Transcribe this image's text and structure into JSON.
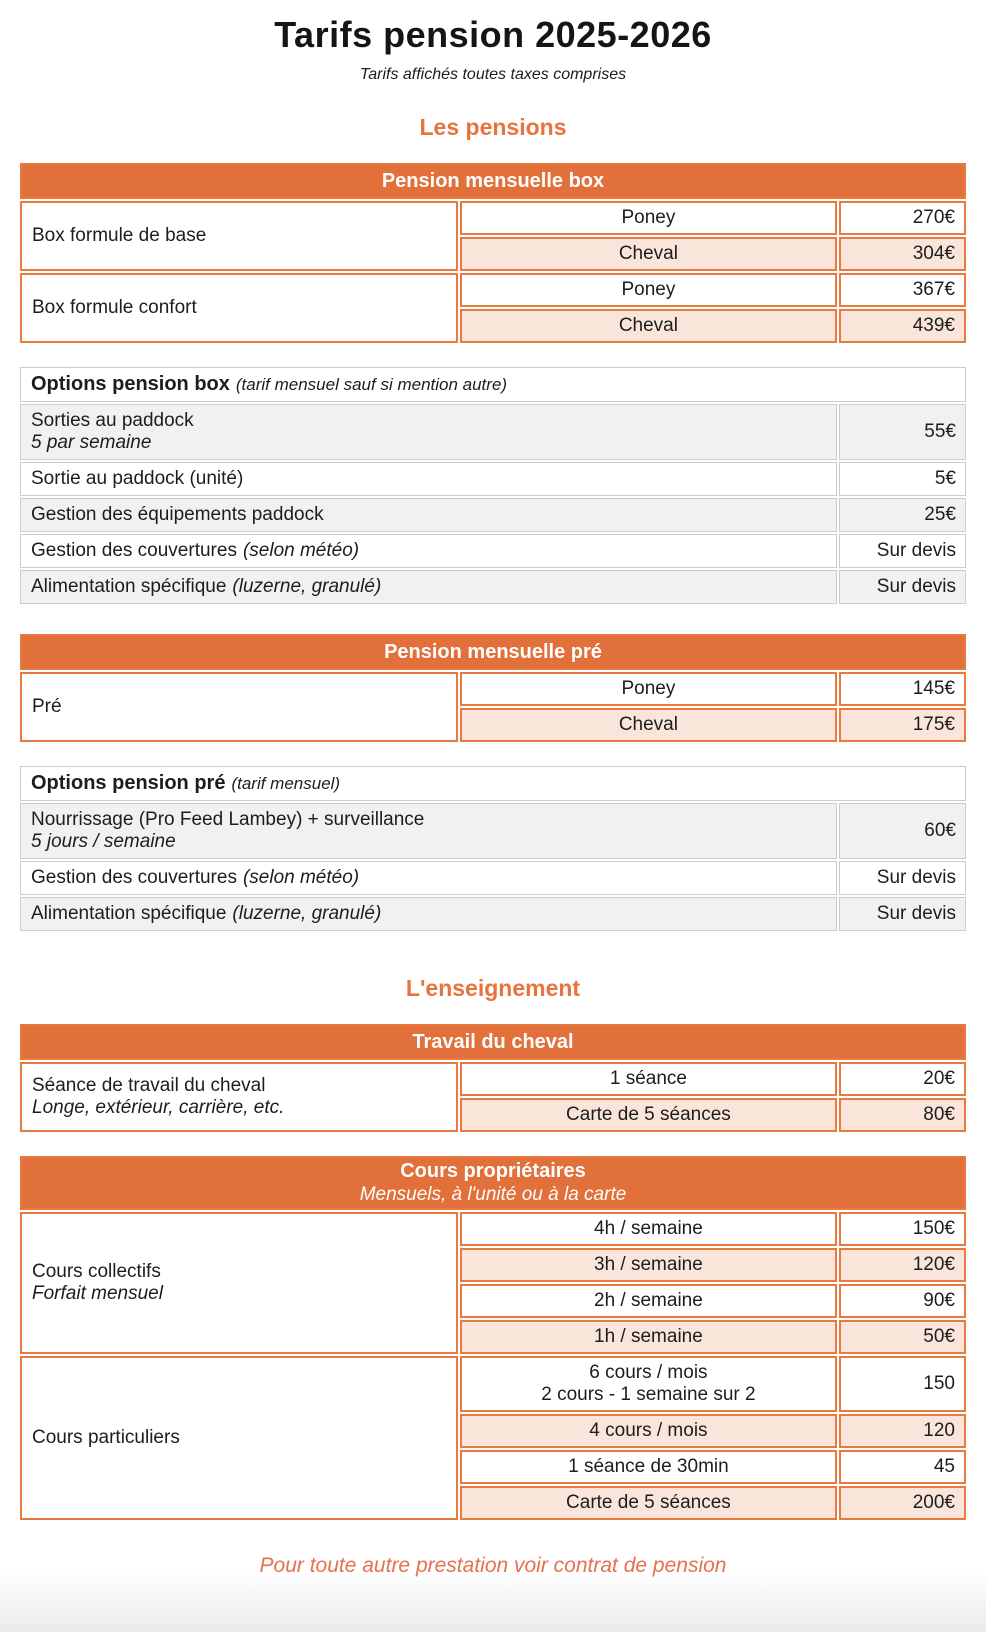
{
  "title": "Tarifs pension 2025-2026",
  "subtitle": "Tarifs affichés toutes taxes comprises",
  "colors": {
    "accent_orange": "#e2703a",
    "row_pink": "#f9e5da",
    "row_gray": "#f1f1f1",
    "footer_orange": "#e7704d"
  },
  "sections": {
    "pensions": {
      "heading": "Les pensions",
      "pension_box": {
        "header": "Pension mensuelle box",
        "groups": [
          {
            "label": "Box formule de base",
            "rows": [
              {
                "name": "Poney",
                "price": "270€"
              },
              {
                "name": "Cheval",
                "price": "304€"
              }
            ]
          },
          {
            "label": "Box formule confort",
            "rows": [
              {
                "name": "Poney",
                "price": "367€"
              },
              {
                "name": "Cheval",
                "price": "439€"
              }
            ]
          }
        ]
      },
      "options_box": {
        "title": "Options pension box",
        "note": "(tarif mensuel sauf si mention autre)",
        "rows": [
          {
            "label": "Sorties au paddock",
            "sub": "5 par semaine",
            "price": "55€"
          },
          {
            "label": "Sortie au paddock (unité)",
            "price": "5€"
          },
          {
            "label": "Gestion des équipements paddock",
            "price": "25€"
          },
          {
            "label": "Gestion des couvertures",
            "note": "(selon météo)",
            "price": "Sur devis"
          },
          {
            "label": "Alimentation spécifique",
            "note": "(luzerne, granulé)",
            "price": "Sur devis"
          }
        ]
      },
      "pension_pre": {
        "header": "Pension mensuelle pré",
        "groups": [
          {
            "label": "Pré",
            "rows": [
              {
                "name": "Poney",
                "price": "145€"
              },
              {
                "name": "Cheval",
                "price": "175€"
              }
            ]
          }
        ]
      },
      "options_pre": {
        "title": "Options pension pré",
        "note": "(tarif mensuel)",
        "rows": [
          {
            "label": "Nourrissage (Pro Feed Lambey) + surveillance",
            "sub": "5 jours / semaine",
            "price": "60€"
          },
          {
            "label": "Gestion des couvertures",
            "note": "(selon météo)",
            "price": "Sur devis"
          },
          {
            "label": "Alimentation spécifique",
            "note": "(luzerne, granulé)",
            "price": "Sur devis"
          }
        ]
      }
    },
    "enseignement": {
      "heading": "L'enseignement",
      "travail": {
        "header": "Travail du cheval",
        "group_label": "Séance de travail du cheval",
        "group_sub": "Longe, extérieur, carrière, etc.",
        "rows": [
          {
            "name": "1 séance",
            "price": "20€"
          },
          {
            "name": "Carte de 5 séances",
            "price": "80€"
          }
        ]
      },
      "cours": {
        "header": "Cours propriétaires",
        "header_sub": "Mensuels, à l'unité ou à la carte",
        "collectifs": {
          "label": "Cours collectifs",
          "sub": "Forfait mensuel",
          "rows": [
            {
              "name": "4h / semaine",
              "price": "150€"
            },
            {
              "name": "3h / semaine",
              "price": "120€"
            },
            {
              "name": "2h / semaine",
              "price": "90€"
            },
            {
              "name": "1h / semaine",
              "price": "50€"
            }
          ]
        },
        "particuliers": {
          "label": "Cours particuliers",
          "rows": [
            {
              "name": "6 cours / mois",
              "name2": "2 cours - 1 semaine sur 2",
              "price": "150"
            },
            {
              "name": "4 cours / mois",
              "price": "120"
            },
            {
              "name": "1 séance de 30min",
              "price": "45"
            },
            {
              "name": "Carte de 5 séances",
              "price": "200€"
            }
          ]
        }
      }
    }
  },
  "footer": {
    "note": "Pour toute autre prestation voir contrat de pension"
  }
}
